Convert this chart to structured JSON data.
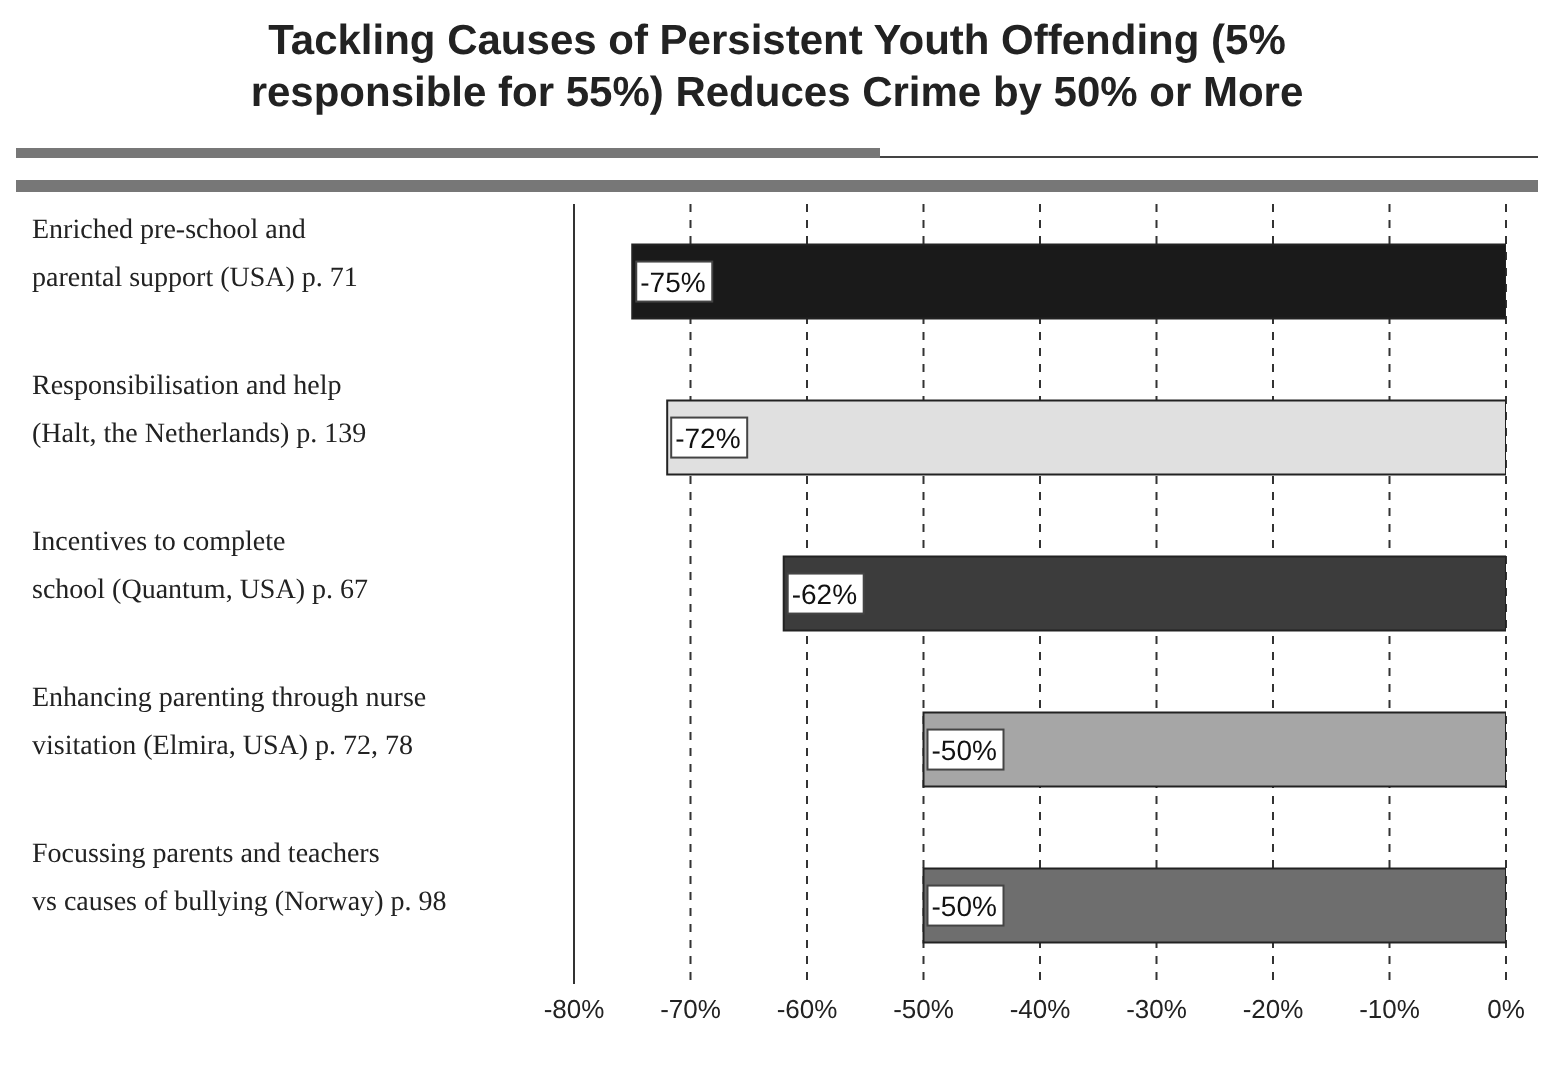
{
  "chart_data": {
    "type": "bar",
    "orientation": "horizontal",
    "title": "Tackling Causes of Persistent Youth Offending (5% responsible for 55%) Reduces Crime by 50% or More",
    "categories": [
      "Enriched pre-school and\nparental support (USA)  p. 71",
      "Responsibilisation and help\n(Halt, the Netherlands) p. 139",
      "Incentives to complete\nschool (Quantum, USA) p. 67",
      "Enhancing parenting through nurse\nvisitation  (Elmira, USA) p. 72, 78",
      "Focussing parents and teachers\nvs causes of bullying  (Norway) p. 98"
    ],
    "values": [
      -75,
      -72,
      -62,
      -50,
      -50
    ],
    "colors": [
      "#1a1a1a",
      "#e0e0e0",
      "#3c3c3c",
      "#a6a6a6",
      "#6e6e6e"
    ],
    "xlim": [
      -80,
      0
    ],
    "xticks": [
      {
        "value": -80,
        "label": "-80%"
      },
      {
        "value": -70,
        "label": "-70%"
      },
      {
        "value": -60,
        "label": "-60%"
      },
      {
        "value": -50,
        "label": "-50%"
      },
      {
        "value": -40,
        "label": "-40%"
      },
      {
        "value": -30,
        "label": "-30%"
      },
      {
        "value": -20,
        "label": "-20%"
      },
      {
        "value": -10,
        "label": "-10%"
      },
      {
        "value": 0,
        "label": "0%"
      }
    ],
    "value_labels": [
      "-75%",
      "-72%",
      "-62%",
      "-50%",
      "-50%"
    ],
    "grid": "x"
  }
}
